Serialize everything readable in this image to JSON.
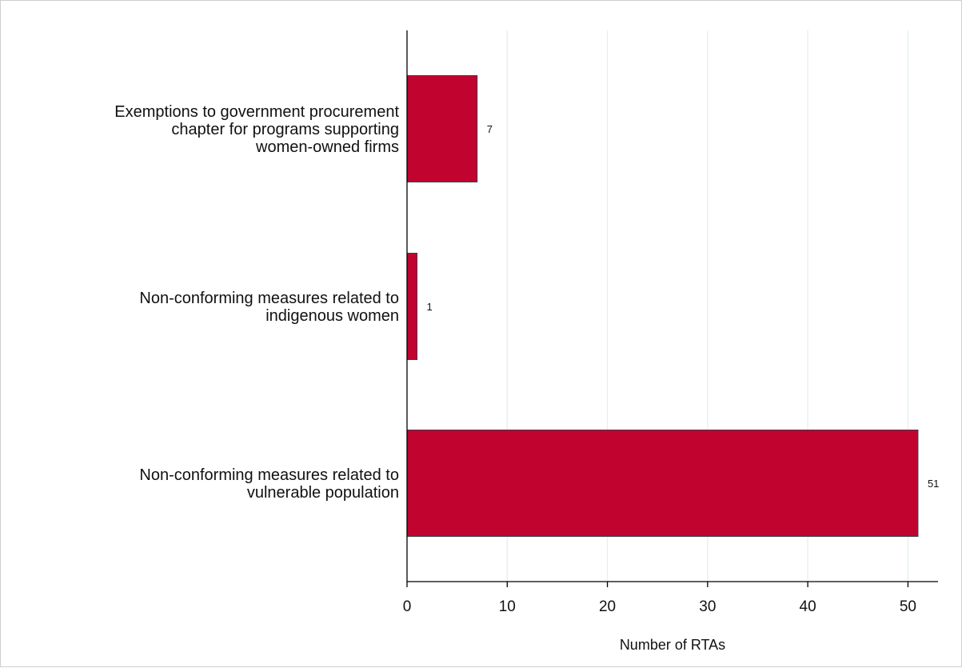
{
  "chart_data": {
    "type": "bar",
    "orientation": "horizontal",
    "categories": [
      [
        "Exemptions to government procurement",
        "chapter for programs supporting",
        "women-owned firms"
      ],
      [
        "Non-conforming measures related to",
        "indigenous women"
      ],
      [
        "Non-conforming measures related to",
        "vulnerable population"
      ]
    ],
    "values": [
      7,
      1,
      51
    ],
    "value_labels": [
      "7",
      "1",
      "51"
    ],
    "xlabel": "Number of RTAs",
    "ylabel": "",
    "xlim": [
      0,
      53
    ],
    "xticks": [
      0,
      10,
      20,
      30,
      40,
      50
    ],
    "tick_labels": [
      "0",
      "10",
      "20",
      "30",
      "40",
      "50"
    ],
    "grid": "vertical",
    "colors": {
      "bar": "#c0042f",
      "bar_edge": "#3b3f4e",
      "grid": "#e3eef0",
      "axis": "#000000",
      "frame": "#cfcfcf"
    }
  }
}
